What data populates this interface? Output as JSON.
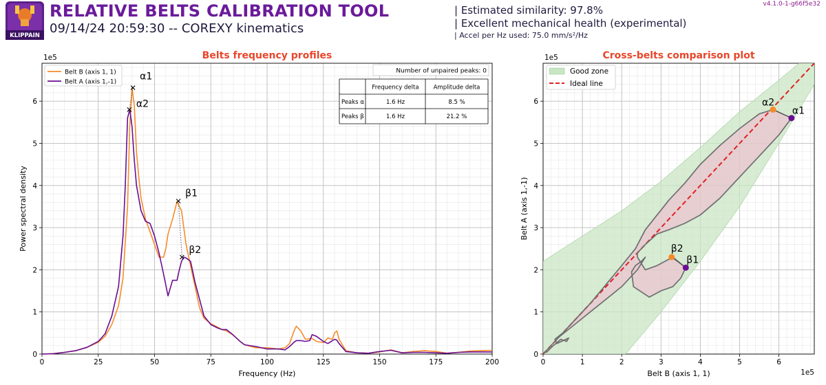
{
  "header": {
    "title": "RELATIVE BELTS CALIBRATION TOOL",
    "subtitle": "09/14/24 20:59:30 -- COREXY kinematics",
    "similarity": "| Estimated similarity: 97.8%",
    "health": "| Excellent mechanical health (experimental)",
    "accel": "| Accel per Hz used: 75.0 mm/s²/Hz",
    "version": "v4.1.0-1-g66f5e32",
    "logo_text": "KLIPPAIN"
  },
  "colors": {
    "title": "#6a1b9a",
    "plot_title": "#e8462b",
    "belt_b": "#f68b2a",
    "belt_a": "#6a0d91",
    "good_zone": "#c9e6c4",
    "ideal_line": "#e02020",
    "diff_fill": "#f2b6cf"
  },
  "chart_data": [
    {
      "type": "line",
      "title": "Belts frequency profiles",
      "xlabel": "Frequency (Hz)",
      "ylabel": "Power spectral density",
      "y_offset_label": "1e5",
      "xlim": [
        0,
        200
      ],
      "ylim": [
        0,
        6.9
      ],
      "xticks": [
        0,
        25,
        50,
        75,
        100,
        125,
        150,
        175,
        200
      ],
      "yticks": [
        0,
        1,
        2,
        3,
        4,
        5,
        6
      ],
      "xtick_labels": [
        "0",
        "25",
        "50",
        "75",
        "100",
        "125",
        "150",
        "175",
        "200"
      ],
      "ytick_labels": [
        "0",
        "1",
        "2",
        "3",
        "4",
        "5",
        "6"
      ],
      "grid": true,
      "legend_position": "top-left",
      "series": [
        {
          "name": "Belt B (axis 1, 1)",
          "color": "#f68b2a",
          "x": [
            0,
            5,
            10,
            15,
            20,
            25,
            28,
            31,
            34,
            36,
            38,
            39,
            40,
            41,
            42,
            43,
            44,
            46,
            48,
            50,
            52,
            54,
            55,
            56,
            58,
            60,
            62,
            63,
            64,
            66,
            68,
            70,
            72,
            75,
            78,
            80,
            82,
            85,
            88,
            90,
            95,
            100,
            105,
            108,
            110,
            112,
            113,
            115,
            117,
            120,
            122,
            125,
            127,
            129,
            130,
            131,
            132,
            135,
            140,
            145,
            150,
            155,
            160,
            165,
            170,
            175,
            180,
            185,
            190,
            195,
            200
          ],
          "values": [
            0,
            0.01,
            0.04,
            0.08,
            0.16,
            0.28,
            0.42,
            0.7,
            1.15,
            1.8,
            3.5,
            5.4,
            6.32,
            5.9,
            4.8,
            4.2,
            3.7,
            3.2,
            2.9,
            2.6,
            2.3,
            2.3,
            2.5,
            2.85,
            3.2,
            3.62,
            3.4,
            3.0,
            2.6,
            2.1,
            1.6,
            1.1,
            0.85,
            0.72,
            0.64,
            0.58,
            0.55,
            0.45,
            0.3,
            0.22,
            0.15,
            0.15,
            0.12,
            0.15,
            0.25,
            0.55,
            0.66,
            0.55,
            0.35,
            0.37,
            0.3,
            0.27,
            0.38,
            0.35,
            0.5,
            0.55,
            0.35,
            0.08,
            0.03,
            0.02,
            0.05,
            0.1,
            0.03,
            0.06,
            0.08,
            0.06,
            0.02,
            0.04,
            0.07,
            0.08,
            0.09
          ]
        },
        {
          "name": "Belt A (axis 1,-1)",
          "color": "#6a0d91",
          "x": [
            0,
            5,
            10,
            15,
            20,
            25,
            28,
            31,
            34,
            36,
            37,
            38,
            39,
            40,
            41,
            42,
            44,
            46,
            48,
            50,
            52,
            54,
            56,
            58,
            60,
            61,
            62,
            63,
            64,
            66,
            68,
            70,
            72,
            75,
            78,
            80,
            82,
            85,
            88,
            90,
            95,
            100,
            105,
            108,
            110,
            112,
            113,
            115,
            117,
            119,
            120,
            122,
            125,
            127,
            130,
            131,
            132,
            135,
            140,
            145,
            150,
            155,
            160,
            165,
            170,
            175,
            180,
            185,
            190,
            195,
            200
          ],
          "values": [
            0,
            0.01,
            0.04,
            0.08,
            0.16,
            0.3,
            0.48,
            0.9,
            1.6,
            2.8,
            4.0,
            5.6,
            5.8,
            5.4,
            4.6,
            4.0,
            3.4,
            3.15,
            3.1,
            2.8,
            2.4,
            1.9,
            1.38,
            1.75,
            1.75,
            2.0,
            2.2,
            2.3,
            2.28,
            2.2,
            1.7,
            1.3,
            0.9,
            0.7,
            0.62,
            0.58,
            0.58,
            0.45,
            0.3,
            0.22,
            0.18,
            0.12,
            0.12,
            0.1,
            0.18,
            0.28,
            0.32,
            0.32,
            0.3,
            0.32,
            0.46,
            0.42,
            0.3,
            0.25,
            0.35,
            0.33,
            0.25,
            0.06,
            0.03,
            0.02,
            0.06,
            0.09,
            0.03,
            0.04,
            0.04,
            0.03,
            0.02,
            0.04,
            0.05,
            0.05,
            0.05
          ]
        }
      ],
      "peaks": [
        {
          "label": "α1",
          "x": 40.4,
          "y": 6.32
        },
        {
          "label": "α2",
          "x": 38.8,
          "y": 5.8
        },
        {
          "label": "β1",
          "x": 60.6,
          "y": 3.63
        },
        {
          "label": "β2",
          "x": 62.2,
          "y": 2.3
        }
      ],
      "table": {
        "unpaired_text": "Number of unpaired peaks: 0",
        "headers": [
          "",
          "Frequency delta",
          "Amplitude delta"
        ],
        "rows": [
          [
            "Peaks α",
            "1.6 Hz",
            "8.5 %"
          ],
          [
            "Peaks β",
            "1.6 Hz",
            "21.2 %"
          ]
        ]
      }
    },
    {
      "type": "scatter",
      "title": "Cross-belts comparison plot",
      "xlabel": "Belt B (axis 1, 1)",
      "ylabel": "Belt A (axis 1,-1)",
      "x_offset_label": "1e5",
      "y_offset_label": "1e5",
      "xlim": [
        0,
        6.9
      ],
      "ylim": [
        0,
        6.9
      ],
      "xticks": [
        0,
        1,
        2,
        3,
        4,
        5,
        6
      ],
      "yticks": [
        0,
        1,
        2,
        3,
        4,
        5,
        6
      ],
      "xtick_labels": [
        "0",
        "1",
        "2",
        "3",
        "4",
        "5",
        "6"
      ],
      "ytick_labels": [
        "0",
        "1",
        "2",
        "3",
        "4",
        "5",
        "6"
      ],
      "grid": true,
      "legend_position": "top-left",
      "legend": [
        {
          "label": "Good zone",
          "kind": "patch",
          "color": "#c9e6c4"
        },
        {
          "label": "Ideal line",
          "kind": "dashed",
          "color": "#e02020"
        }
      ],
      "good_zone": {
        "upper": [
          [
            0,
            2.2
          ],
          [
            1,
            2.8
          ],
          [
            2,
            3.4
          ],
          [
            3,
            4.1
          ],
          [
            4,
            4.9
          ],
          [
            5,
            5.75
          ],
          [
            6,
            6.5
          ],
          [
            6.9,
            7.2
          ]
        ],
        "lower": [
          [
            6.9,
            6.4
          ],
          [
            6,
            5.0
          ],
          [
            5,
            3.5
          ],
          [
            4,
            2.2
          ],
          [
            3,
            1.0
          ],
          [
            2.1,
            0
          ]
        ]
      },
      "ideal_line": [
        [
          0,
          0
        ],
        [
          6.9,
          6.9
        ]
      ],
      "cross_curve": [
        [
          0.02,
          0.03
        ],
        [
          0.1,
          0.05
        ],
        [
          0.2,
          0.15
        ],
        [
          0.45,
          0.35
        ],
        [
          0.6,
          0.3
        ],
        [
          0.65,
          0.38
        ],
        [
          0.35,
          0.25
        ],
        [
          0.3,
          0.35
        ],
        [
          0.5,
          0.5
        ],
        [
          0.8,
          0.8
        ],
        [
          1.2,
          1.2
        ],
        [
          1.6,
          1.65
        ],
        [
          2.0,
          2.1
        ],
        [
          2.35,
          2.5
        ],
        [
          2.6,
          2.95
        ],
        [
          3.2,
          3.65
        ],
        [
          3.6,
          4.05
        ],
        [
          4.0,
          4.5
        ],
        [
          4.5,
          4.95
        ],
        [
          5.0,
          5.35
        ],
        [
          5.5,
          5.7
        ],
        [
          5.85,
          5.8
        ],
        [
          6.32,
          5.6
        ],
        [
          6.0,
          5.2
        ],
        [
          5.8,
          5.0
        ],
        [
          5.5,
          4.7
        ],
        [
          5.0,
          4.2
        ],
        [
          4.5,
          3.7
        ],
        [
          4.0,
          3.3
        ],
        [
          3.6,
          3.1
        ],
        [
          3.2,
          2.95
        ],
        [
          2.9,
          2.85
        ],
        [
          2.6,
          2.6
        ],
        [
          2.4,
          2.4
        ],
        [
          2.4,
          2.3
        ],
        [
          2.6,
          2.0
        ],
        [
          2.9,
          2.1
        ],
        [
          3.3,
          2.3
        ],
        [
          3.63,
          2.05
        ],
        [
          3.5,
          1.8
        ],
        [
          3.3,
          1.6
        ],
        [
          3.0,
          1.5
        ],
        [
          2.7,
          1.35
        ],
        [
          2.3,
          1.6
        ],
        [
          2.25,
          1.95
        ],
        [
          2.35,
          2.1
        ],
        [
          2.5,
          2.2
        ],
        [
          2.6,
          2.3
        ],
        [
          2.4,
          2.0
        ],
        [
          2.0,
          1.6
        ],
        [
          1.6,
          1.3
        ],
        [
          1.2,
          1.0
        ],
        [
          0.8,
          0.7
        ],
        [
          0.4,
          0.4
        ],
        [
          0.1,
          0.1
        ],
        [
          0.02,
          0.03
        ]
      ],
      "peak_points": [
        {
          "label": "α1",
          "x": 6.32,
          "y": 5.6,
          "color": "#6a0d91"
        },
        {
          "label": "α2",
          "x": 5.85,
          "y": 5.8,
          "color": "#f68b2a"
        },
        {
          "label": "β1",
          "x": 3.63,
          "y": 2.05,
          "color": "#6a0d91"
        },
        {
          "label": "β2",
          "x": 3.27,
          "y": 2.3,
          "color": "#f68b2a"
        }
      ]
    }
  ]
}
